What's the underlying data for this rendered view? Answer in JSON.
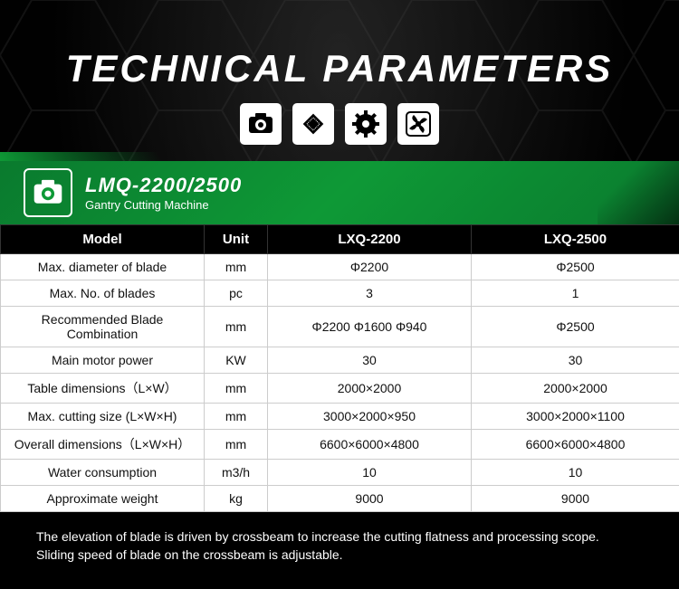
{
  "header": {
    "title": "TECHNICAL PARAMETERS",
    "icons": [
      "camera-icon",
      "diamond-icon",
      "gear-icon",
      "fan-icon"
    ]
  },
  "product": {
    "model": "LMQ-2200/2500",
    "subtitle": "Gantry Cutting Machine",
    "icon": "camera-icon"
  },
  "table": {
    "headers": [
      "Model",
      "Unit",
      "LXQ-2200",
      "LXQ-2500"
    ],
    "rows": [
      [
        "Max. diameter of blade",
        "mm",
        "Φ2200",
        "Φ2500"
      ],
      [
        "Max. No. of blades",
        "pc",
        "3",
        "1"
      ],
      [
        "Recommended Blade Combination",
        "mm",
        "Φ2200  Φ1600  Φ940",
        "Φ2500"
      ],
      [
        "Main motor power",
        "KW",
        "30",
        "30"
      ],
      [
        "Table dimensions（L×W）",
        "mm",
        "2000×2000",
        "2000×2000"
      ],
      [
        "Max. cutting size (L×W×H)",
        "mm",
        "3000×2000×950",
        "3000×2000×1100"
      ],
      [
        "Overall dimensions（L×W×H）",
        "mm",
        "6600×6000×4800",
        "6600×6000×4800"
      ],
      [
        "Water consumption",
        "m3/h",
        "10",
        "10"
      ],
      [
        "Approximate weight",
        "kg",
        "9000",
        "9000"
      ]
    ]
  },
  "footer": {
    "line1": "The elevation of blade is driven by crossbeam to increase the cutting flatness and processing scope.",
    "line2": "Sliding speed of blade on the crossbeam is adjustable."
  },
  "colors": {
    "green": "#0e9936",
    "black": "#000000",
    "white": "#ffffff",
    "grid": "#cccccc"
  }
}
